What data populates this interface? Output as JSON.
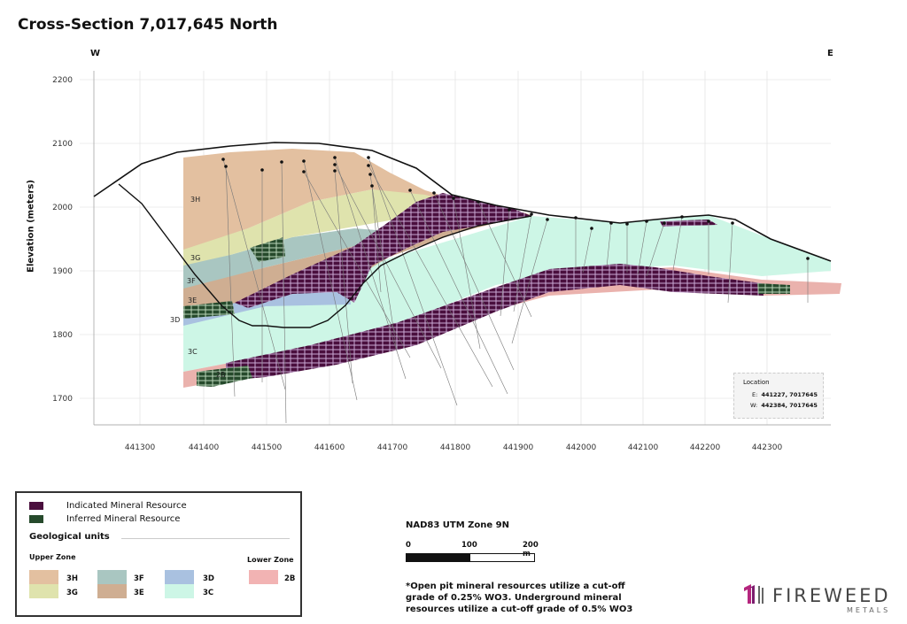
{
  "title": "Cross-Section 7,017,645 North",
  "directions": {
    "west": "W",
    "east": "E"
  },
  "axes": {
    "ylabel": "Elevation (meters)",
    "x_ticks": [
      "441300",
      "441400",
      "441500",
      "441600",
      "441700",
      "441800",
      "441900",
      "442000",
      "442100",
      "442200",
      "442300"
    ],
    "y_ticks": [
      "2200",
      "2100",
      "2000",
      "1900",
      "1800",
      "1700"
    ]
  },
  "unit_labels": [
    "3H",
    "3G",
    "3F",
    "3E",
    "3D",
    "3C",
    "2B"
  ],
  "location": {
    "heading": "Location",
    "east_label": "E:",
    "east_value": "441227, 7017645",
    "west_label": "W:",
    "west_value": "442384, 7017645"
  },
  "legend": {
    "indicated": "Indicated Mineral Resource",
    "inferred": "Inferred Mineral Resource",
    "geo_heading": "Geological units",
    "upper_zone": "Upper Zone",
    "lower_zone": "Lower Zone",
    "units": [
      {
        "code": "3H",
        "color": "#e3c0a0"
      },
      {
        "code": "3G",
        "color": "#dfe3ad"
      },
      {
        "code": "3F",
        "color": "#a9c6c1"
      },
      {
        "code": "3E",
        "color": "#cfae92"
      },
      {
        "code": "3D",
        "color": "#a9c1e0"
      },
      {
        "code": "3C",
        "color": "#cdf6e6"
      },
      {
        "code": "2B",
        "color": "#f2b3b3"
      }
    ],
    "indicated_color": "#4a0f3e",
    "inferred_color": "#264a2c"
  },
  "scale": {
    "datum": "NAD83 UTM Zone 9N",
    "labels": [
      "0",
      "100",
      "200 m"
    ]
  },
  "note": "*Open pit mineral resources utilize a cut-off grade of 0.25% WO3. Underground mineral resources utilize a cut-off grade of 0.5% WO3",
  "logo": {
    "name": "FIREWEED",
    "sub": "METALS"
  }
}
